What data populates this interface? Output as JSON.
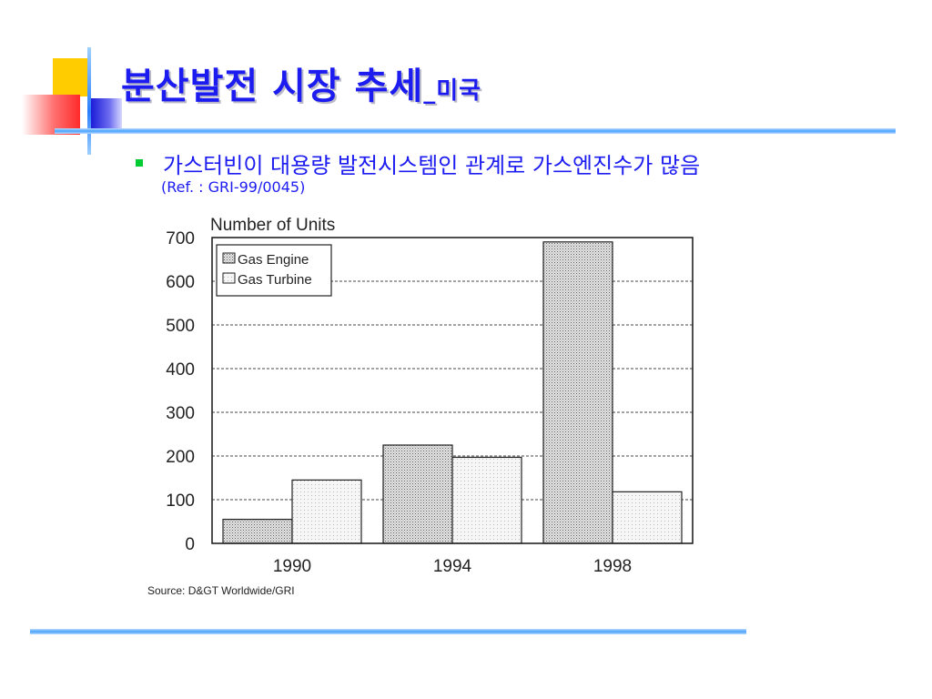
{
  "slide": {
    "title_main": "분산발전 시장 추세",
    "title_suffix": "_미국",
    "bullet_text": "가스터빈이 대용량 발전시스템인 관계로 가스엔진수가 많음",
    "reference": "(Ref. : GRI-99/0045)"
  },
  "colors": {
    "title": "#1c1cf0",
    "bullet": "#00cc33",
    "accent_yellow": "#ffcc00",
    "accent_red": "#ff2a2a",
    "accent_blue": "#1c1cd8",
    "rule": "#4aa2ff"
  },
  "chart_data": {
    "type": "bar",
    "ylabel": "Number of Units",
    "categories": [
      "1990",
      "1994",
      "1998"
    ],
    "series": [
      {
        "name": "Gas Engine",
        "values": [
          55,
          225,
          690
        ]
      },
      {
        "name": "Gas Turbine",
        "values": [
          145,
          197,
          118
        ]
      }
    ],
    "ylim": [
      0,
      700
    ],
    "yticks": [
      0,
      100,
      200,
      300,
      400,
      500,
      600,
      700
    ],
    "grid": "dashed horizontal",
    "legend_position": "top-left",
    "source": "Source: D&GT Worldwide/GRI"
  }
}
